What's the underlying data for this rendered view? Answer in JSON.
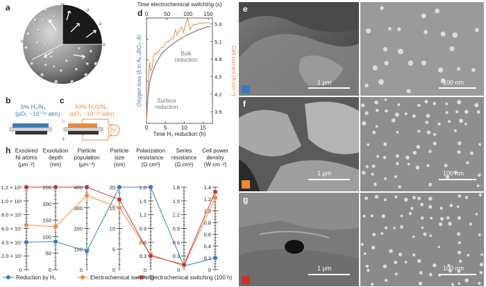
{
  "panels": {
    "a": "a",
    "b": "b",
    "c": "c",
    "d": "d",
    "e": "e",
    "f": "f",
    "g": "g",
    "h": "h"
  },
  "panel_b": {
    "line1": "5% H₂/N₂",
    "line2": "(pO₂ ~10⁻¹⁹ atm)"
  },
  "panel_c": {
    "line1": "50% H₂O/N₂",
    "line2": "(pO₂ ~10⁻¹⁵ atm)",
    "voltage": "2V",
    "minus": "−",
    "plus": "+"
  },
  "colors": {
    "blue": "#3a78c2",
    "orange": "#f0883a",
    "red": "#c8332a",
    "grey": "#8a8a8a"
  },
  "panel_d": {
    "top_axis_label": "Time electrochemical switching (s)",
    "bottom_axis_label": "Time H₂ reduction (h)",
    "left_axis_label": "Oxygen loss (δ in A₀.₉BO₃₋δ)",
    "right_axis_label": "Cell current (A cm⁻²)",
    "annotation_bulk": [
      "Bulk",
      "reduction"
    ],
    "annotation_surface": [
      "Surface",
      "reduction"
    ]
  },
  "chart_data": [
    {
      "type": "line",
      "title": "",
      "xlabel": "Time H₂ reduction (h)",
      "x2label": "Time electrochemical switching (s)",
      "ylabel": "Oxygen loss (δ in A₀.₉BO₃₋δ)",
      "y2label": "Cell current (A cm⁻²)",
      "xlim": [
        0,
        17.5
      ],
      "xticks": [
        0,
        5,
        10,
        15
      ],
      "x2lim": [
        0,
        160
      ],
      "x2ticks": [
        0,
        50,
        100,
        150
      ],
      "ylim": [
        0,
        0.05
      ],
      "yticks": [
        0,
        0.01,
        0.02,
        0.03,
        0.04,
        0.05
      ],
      "y2lim": [
        3.7,
        5.5
      ],
      "y2ticks": [
        3.9,
        4.2,
        4.5,
        4.8,
        5.1,
        5.4
      ],
      "series": [
        {
          "axis": "bottom-left",
          "color": "grey",
          "x": [
            0,
            0.3,
            0.8,
            1.5,
            2.5,
            4,
            6,
            8,
            10,
            12,
            14,
            16,
            17
          ],
          "y": [
            0.0,
            0.011,
            0.019,
            0.024,
            0.0285,
            0.033,
            0.0365,
            0.039,
            0.0412,
            0.043,
            0.0445,
            0.0457,
            0.046
          ]
        },
        {
          "axis": "top-right",
          "color": "orange",
          "x": [
            0,
            4,
            7,
            10,
            14,
            17,
            20,
            24,
            28,
            32,
            36,
            40,
            45,
            50,
            55,
            60,
            65,
            70,
            75,
            80,
            85,
            90,
            95,
            100,
            105,
            110,
            115,
            120,
            125,
            130,
            135,
            140,
            145,
            150,
            155
          ],
          "y": [
            3.75,
            4.3,
            4.75,
            4.6,
            4.65,
            4.85,
            4.9,
            4.88,
            4.92,
            4.96,
            5.0,
            5.0,
            5.05,
            5.1,
            5.1,
            5.15,
            5.15,
            5.3,
            5.2,
            5.3,
            5.35,
            5.25,
            5.4,
            5.5,
            5.3,
            5.35,
            5.4,
            5.38,
            5.4,
            5.42,
            5.4,
            5.42,
            5.42,
            5.42,
            5.42
          ]
        }
      ],
      "annotations": [
        "Bulk reduction",
        "Surface reduction"
      ]
    },
    {
      "type": "line",
      "title": "",
      "axes": [
        {
          "label": [
            "Exsolved",
            "Ni atoms",
            "(μm⁻²)"
          ],
          "ticks": [
            "0",
            "2.0 × 10⁷",
            "4.0 × 10⁷",
            "6.0 × 10⁷",
            "8.0 × 10⁷",
            "1.0 × 10⁸",
            "1.2 × 10⁸"
          ],
          "range": [
            0,
            120000000
          ]
        },
        {
          "label": [
            "Exsolution",
            "depth",
            "(nm)"
          ],
          "ticks": [
            "0",
            "50",
            "100",
            "150",
            "200",
            "250"
          ],
          "range": [
            0,
            250
          ]
        },
        {
          "label": [
            "Particle",
            "population",
            "(μm⁻²)"
          ],
          "ticks": [
            "100",
            "200",
            "300",
            "400"
          ],
          "range": [
            0,
            400
          ]
        },
        {
          "label": [
            "Particle",
            "size",
            "(nm)"
          ],
          "ticks": [
            "5",
            "10",
            "15",
            "20"
          ],
          "range": [
            0,
            20
          ]
        },
        {
          "label": [
            "Polarization",
            "resistance",
            "(Ω cm²)"
          ],
          "ticks": [
            "0.3",
            "0.6",
            "0.9",
            "1.2",
            "1.5",
            "1.8"
          ],
          "range": [
            0,
            1.8
          ]
        },
        {
          "label": [
            "Series",
            "resistance",
            "(Ω cm²)"
          ],
          "ticks": [
            "0.3",
            "0.6",
            "0.9",
            "1.2",
            "1.5",
            "1.8"
          ],
          "range": [
            0,
            1.8
          ]
        },
        {
          "label": [
            "Cell power",
            "density",
            "(W cm⁻²)"
          ],
          "ticks": [
            "0",
            "0.2",
            "0.4",
            "0.6",
            "0.8",
            "1.0",
            "1.2",
            "1.4"
          ],
          "range": [
            0,
            1.4
          ]
        }
      ],
      "series": [
        {
          "name": "Reduction by H₂",
          "color": "blue",
          "values": [
            40000000,
            85,
            90,
            20,
            1.8,
            0.08,
            0.2
          ]
        },
        {
          "name": "Electrochemical switching",
          "color": "orange",
          "values": [
            65000000,
            130,
            360,
            15,
            0.33,
            0.08,
            1.22
          ]
        },
        {
          "name": "Electrochemical switching (100 h)",
          "color": "red",
          "values": [
            120000000,
            250,
            400,
            17,
            0.3,
            0.11,
            1.32
          ]
        }
      ],
      "legend_position": "bottom"
    }
  ],
  "sem": {
    "e": {
      "scale_left": "1 μm",
      "scale_right": "100 nm",
      "swatch": "blue"
    },
    "f": {
      "scale_left": "1 μm",
      "scale_right": "100 nm",
      "swatch": "orange"
    },
    "g": {
      "scale_left": "1 μm",
      "scale_right": "100 nm",
      "swatch": "red"
    }
  }
}
